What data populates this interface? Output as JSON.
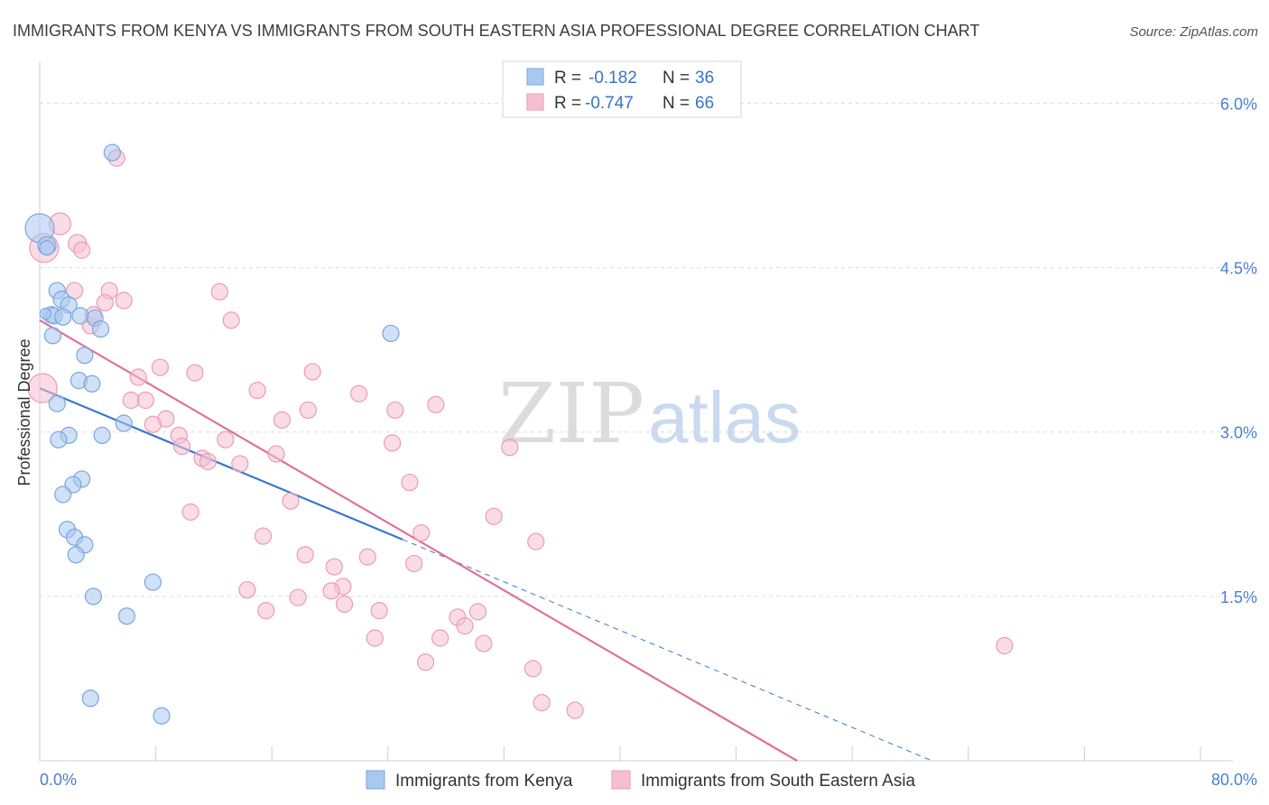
{
  "title": "IMMIGRANTS FROM KENYA VS IMMIGRANTS FROM SOUTH EASTERN ASIA PROFESSIONAL DEGREE CORRELATION CHART",
  "source": "Source: ZipAtlas.com",
  "watermark": {
    "zip": "ZIP",
    "atlas": "atlas"
  },
  "legend_box": {
    "rows": [
      {
        "r_label": "R =",
        "r_value": "-0.182",
        "n_label": "N =",
        "n_value": "36"
      },
      {
        "r_label": "R =",
        "r_value": "-0.747",
        "n_label": "N =",
        "n_value": "66"
      }
    ]
  },
  "chart_data": {
    "type": "scatter",
    "title": "IMMIGRANTS FROM KENYA VS IMMIGRANTS FROM SOUTH EASTERN ASIA PROFESSIONAL DEGREE CORRELATION CHART",
    "xlabel": "",
    "ylabel": "Professional Degree",
    "xlim": [
      0,
      80
    ],
    "ylim": [
      0,
      6.3
    ],
    "x_tick_labels": [
      "0.0%",
      "80.0%"
    ],
    "y_ticks": [
      1.5,
      3.0,
      4.5,
      6.0
    ],
    "y_tick_labels": [
      "1.5%",
      "3.0%",
      "4.5%",
      "6.0%"
    ],
    "legend_position": "bottom",
    "series": [
      {
        "name": "Immigrants from Kenya",
        "color": "#a9c8f0",
        "stroke": "#7aa6dd",
        "line_color": "#3a78d0",
        "r": -0.182,
        "n": 36,
        "trend": {
          "x0": 0,
          "y0": 3.4,
          "x1": 25,
          "y1": 2.02,
          "dash_x1": 61.5,
          "dash_y1": 0.0
        },
        "points": [
          [
            0.0,
            4.86,
            16
          ],
          [
            0.5,
            4.7,
            10
          ],
          [
            0.5,
            4.68,
            8
          ],
          [
            5.0,
            5.55,
            9
          ],
          [
            1.2,
            4.29,
            9
          ],
          [
            1.5,
            4.21,
            9
          ],
          [
            2.0,
            4.16,
            9
          ],
          [
            0.8,
            4.07,
            9
          ],
          [
            1.0,
            4.06,
            9
          ],
          [
            1.6,
            4.05,
            9
          ],
          [
            2.8,
            4.06,
            9
          ],
          [
            3.8,
            4.04,
            9
          ],
          [
            4.2,
            3.94,
            9
          ],
          [
            0.9,
            3.88,
            9
          ],
          [
            3.1,
            3.7,
            9
          ],
          [
            24.2,
            3.9,
            9
          ],
          [
            2.7,
            3.47,
            9
          ],
          [
            3.6,
            3.44,
            9
          ],
          [
            1.2,
            3.26,
            9
          ],
          [
            5.8,
            3.08,
            9
          ],
          [
            2.0,
            2.97,
            9
          ],
          [
            4.3,
            2.97,
            9
          ],
          [
            1.3,
            2.93,
            9
          ],
          [
            2.9,
            2.57,
            9
          ],
          [
            2.3,
            2.52,
            9
          ],
          [
            1.6,
            2.43,
            9
          ],
          [
            1.9,
            2.11,
            9
          ],
          [
            2.4,
            2.04,
            9
          ],
          [
            3.1,
            1.97,
            9
          ],
          [
            2.5,
            1.88,
            9
          ],
          [
            7.8,
            1.63,
            9
          ],
          [
            3.7,
            1.5,
            9
          ],
          [
            6.0,
            1.32,
            9
          ],
          [
            3.5,
            0.57,
            9
          ],
          [
            8.4,
            0.41,
            9
          ],
          [
            0.4,
            4.08,
            6
          ]
        ]
      },
      {
        "name": "Immigrants from South Eastern Asia",
        "color": "#f6bfd1",
        "stroke": "#ec9ab7",
        "line_color": "#e0709a",
        "r": -0.747,
        "n": 66,
        "trend": {
          "x0": 0,
          "y0": 4.02,
          "x1": 52.2,
          "y1": 0.0
        },
        "points": [
          [
            0.3,
            4.68,
            16
          ],
          [
            1.4,
            4.9,
            12
          ],
          [
            2.6,
            4.72,
            10
          ],
          [
            2.9,
            4.66,
            9
          ],
          [
            5.3,
            5.5,
            9
          ],
          [
            2.4,
            4.29,
            9
          ],
          [
            4.8,
            4.29,
            9
          ],
          [
            4.5,
            4.18,
            9
          ],
          [
            5.8,
            4.2,
            9
          ],
          [
            12.4,
            4.28,
            9
          ],
          [
            3.5,
            3.97,
            9
          ],
          [
            3.7,
            4.07,
            9
          ],
          [
            13.2,
            4.02,
            9
          ],
          [
            0.2,
            3.4,
            16
          ],
          [
            8.3,
            3.59,
            9
          ],
          [
            10.7,
            3.54,
            9
          ],
          [
            6.8,
            3.5,
            9
          ],
          [
            18.8,
            3.55,
            9
          ],
          [
            15.0,
            3.38,
            9
          ],
          [
            22.0,
            3.35,
            9
          ],
          [
            6.3,
            3.29,
            9
          ],
          [
            7.3,
            3.29,
            9
          ],
          [
            18.5,
            3.2,
            9
          ],
          [
            24.5,
            3.2,
            9
          ],
          [
            27.3,
            3.25,
            9
          ],
          [
            8.7,
            3.12,
            9
          ],
          [
            16.7,
            3.11,
            9
          ],
          [
            7.8,
            3.07,
            9
          ],
          [
            9.6,
            2.97,
            9
          ],
          [
            12.8,
            2.93,
            9
          ],
          [
            9.8,
            2.87,
            9
          ],
          [
            24.3,
            2.9,
            9
          ],
          [
            16.3,
            2.8,
            9
          ],
          [
            11.2,
            2.76,
            9
          ],
          [
            11.6,
            2.73,
            9
          ],
          [
            13.8,
            2.71,
            9
          ],
          [
            32.4,
            2.86,
            9
          ],
          [
            25.5,
            2.54,
            9
          ],
          [
            17.3,
            2.37,
            9
          ],
          [
            10.4,
            2.27,
            9
          ],
          [
            31.3,
            2.23,
            9
          ],
          [
            15.4,
            2.05,
            9
          ],
          [
            26.3,
            2.08,
            9
          ],
          [
            34.2,
            2.0,
            9
          ],
          [
            18.3,
            1.88,
            9
          ],
          [
            22.6,
            1.86,
            9
          ],
          [
            25.8,
            1.8,
            9
          ],
          [
            20.3,
            1.77,
            9
          ],
          [
            14.3,
            1.56,
            9
          ],
          [
            20.9,
            1.59,
            9
          ],
          [
            17.8,
            1.49,
            9
          ],
          [
            20.1,
            1.55,
            9
          ],
          [
            21.0,
            1.43,
            9
          ],
          [
            15.6,
            1.37,
            9
          ],
          [
            23.4,
            1.37,
            9
          ],
          [
            30.2,
            1.36,
            9
          ],
          [
            28.8,
            1.31,
            9
          ],
          [
            29.3,
            1.23,
            9
          ],
          [
            23.1,
            1.12,
            9
          ],
          [
            27.6,
            1.12,
            9
          ],
          [
            30.6,
            1.07,
            9
          ],
          [
            66.5,
            1.05,
            9
          ],
          [
            26.6,
            0.9,
            9
          ],
          [
            34.0,
            0.84,
            9
          ],
          [
            34.6,
            0.53,
            9
          ],
          [
            36.9,
            0.46,
            9
          ]
        ]
      }
    ]
  }
}
